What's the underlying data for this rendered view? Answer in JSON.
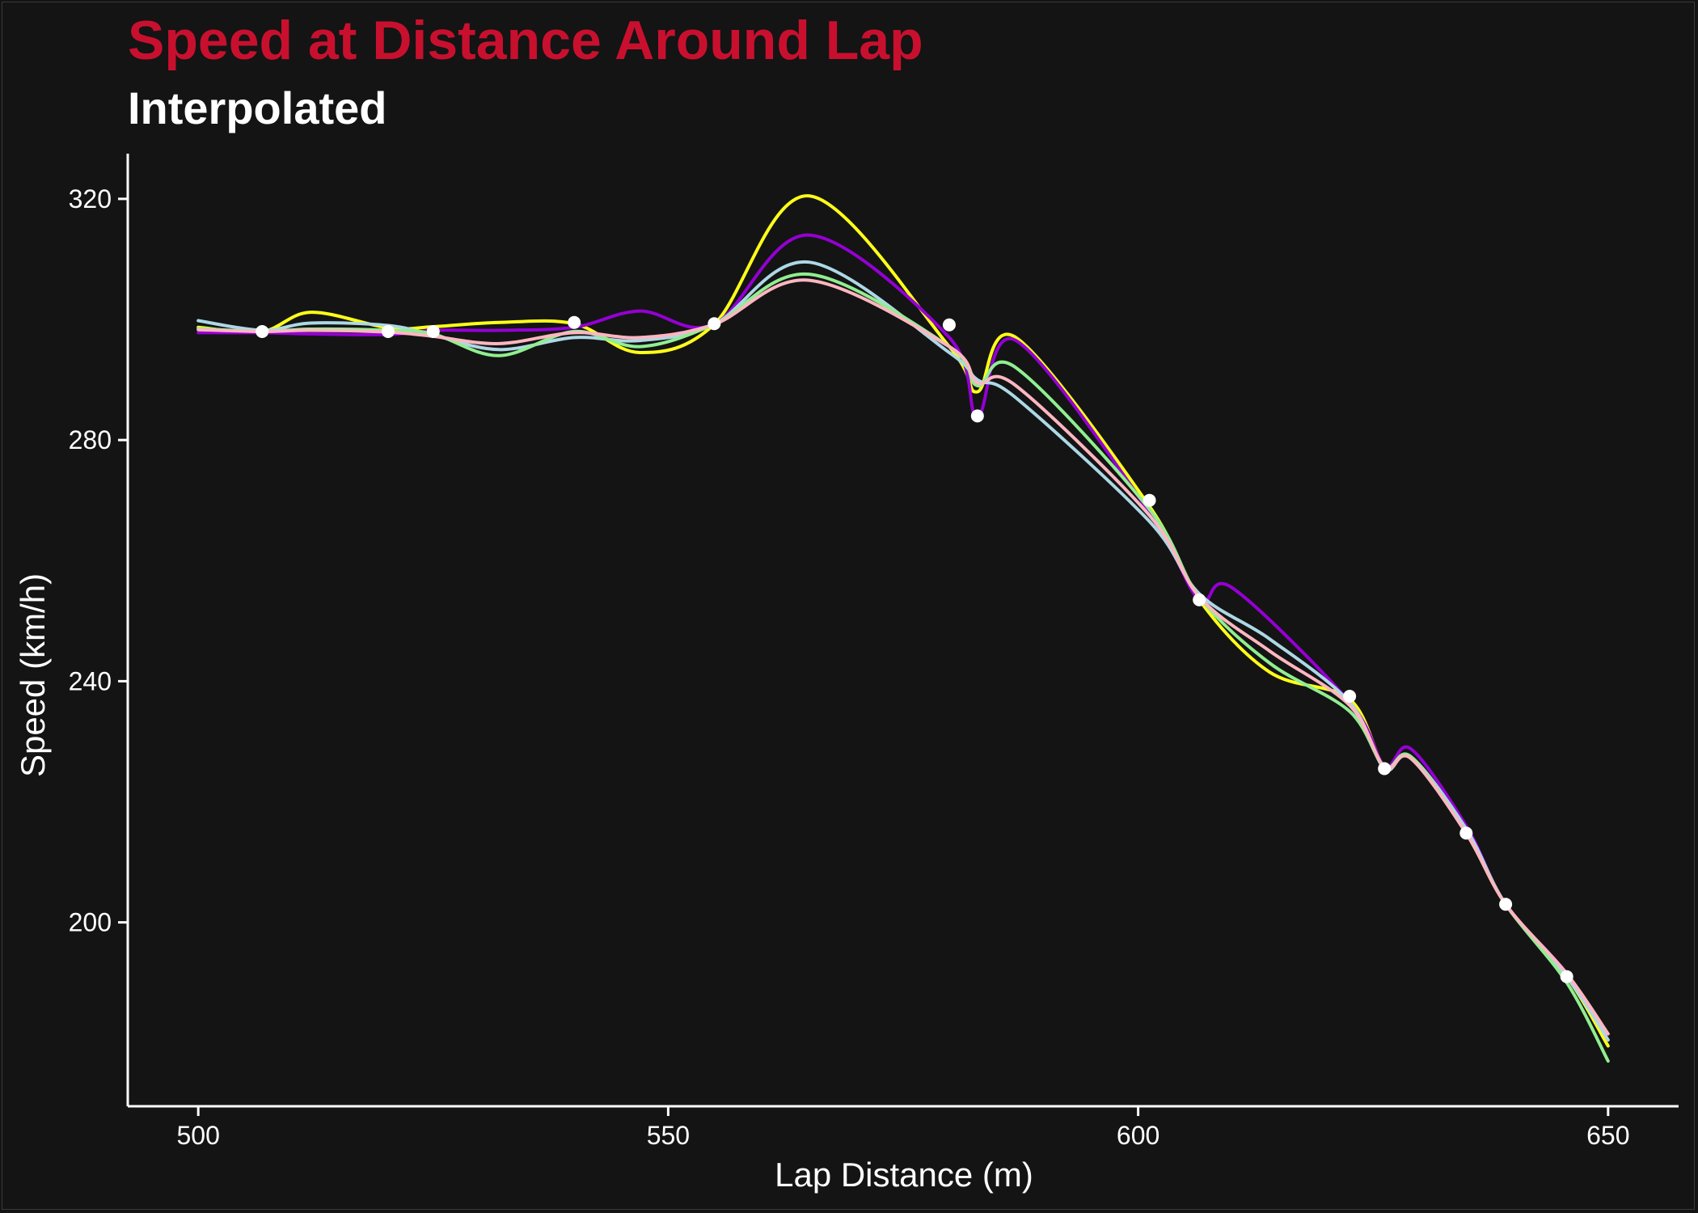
{
  "chart_data": {
    "type": "line",
    "title": "Speed at Distance Around Lap",
    "subtitle": "Interpolated",
    "xlabel": "Lap Distance (m)",
    "ylabel": "Speed (km/h)",
    "xlim": [
      492.5,
      657.5
    ],
    "ylim": [
      169.5,
      327.5
    ],
    "x_ticks": [
      500,
      550,
      600,
      650
    ],
    "y_ticks": [
      200,
      240,
      280,
      320
    ],
    "grid": false,
    "legend": "none",
    "colors": {
      "background": "#141414",
      "title": "#c8102e",
      "text": "#ffffff",
      "axis": "#ffffff",
      "points": "#ffffff"
    },
    "observed_points": [
      {
        "x": 506.8,
        "y": 298.0
      },
      {
        "x": 520.2,
        "y": 298.0
      },
      {
        "x": 525.0,
        "y": 298.0
      },
      {
        "x": 540.0,
        "y": 299.5
      },
      {
        "x": 554.9,
        "y": 299.3
      },
      {
        "x": 579.9,
        "y": 299.1
      },
      {
        "x": 582.9,
        "y": 284.0
      },
      {
        "x": 601.2,
        "y": 270.0
      },
      {
        "x": 606.5,
        "y": 253.5
      },
      {
        "x": 622.5,
        "y": 237.5
      },
      {
        "x": 626.2,
        "y": 225.5
      },
      {
        "x": 634.9,
        "y": 214.8
      },
      {
        "x": 639.1,
        "y": 203.0
      },
      {
        "x": 645.6,
        "y": 191.0
      }
    ],
    "series": [
      {
        "color": "#ffff1a",
        "x": [
          500,
          506.8,
          512,
          520.2,
          525,
          532,
          540,
          547,
          554.9,
          565,
          579.9,
          582.9,
          587,
          601.2,
          606.5,
          614,
          622.5,
          626.2,
          629,
          634.9,
          639.1,
          645.6,
          650
        ],
        "y": [
          298.7,
          298.0,
          301.2,
          298.6,
          298.8,
          299.5,
          299.3,
          294.5,
          299.2,
          320.5,
          295.5,
          288.0,
          297.0,
          269.0,
          253.5,
          241.5,
          237.0,
          225.8,
          227.5,
          214.8,
          203.0,
          191.0,
          179.5
        ]
      },
      {
        "color": "#9400d3",
        "x": [
          500,
          506.8,
          512,
          520.2,
          525,
          532,
          540,
          547,
          554.9,
          565,
          579.9,
          582.9,
          587,
          601.2,
          606.5,
          610,
          622.5,
          626.2,
          629,
          634.9,
          639.1,
          645.6,
          650
        ],
        "y": [
          297.8,
          297.8,
          297.6,
          297.5,
          298.2,
          298.2,
          298.7,
          301.4,
          299.2,
          314.0,
          297.0,
          284.0,
          296.5,
          268.0,
          253.5,
          255.5,
          236.5,
          226.0,
          228.8,
          216.0,
          203.0,
          191.5,
          180.5
        ]
      },
      {
        "color": "#add8e6",
        "x": [
          500,
          506.8,
          512,
          520.2,
          525,
          532,
          540,
          547,
          554.9,
          565,
          579.9,
          582.9,
          587,
          601.2,
          606.5,
          614,
          622.5,
          626.2,
          629,
          634.9,
          639.1,
          645.6,
          650
        ],
        "y": [
          299.8,
          298.2,
          299.4,
          299.0,
          297.4,
          295.0,
          297.0,
          296.5,
          299.2,
          309.5,
          294.5,
          290.0,
          287.0,
          266.5,
          254.5,
          247.0,
          236.5,
          225.5,
          227.5,
          215.5,
          203.0,
          191.0,
          180.5
        ]
      },
      {
        "color": "#90ee90",
        "x": [
          500,
          506.8,
          512,
          520.2,
          525,
          532,
          540,
          547,
          554.9,
          565,
          579.9,
          582.9,
          587,
          601.2,
          606.5,
          614,
          622.5,
          626.2,
          629,
          634.9,
          639.1,
          645.6,
          650
        ],
        "y": [
          298.5,
          298.0,
          298.4,
          298.2,
          297.6,
          294.0,
          298.0,
          295.5,
          299.2,
          307.5,
          295.5,
          289.0,
          292.0,
          268.5,
          254.0,
          243.0,
          235.0,
          225.8,
          227.5,
          214.8,
          203.0,
          190.0,
          177.0
        ]
      },
      {
        "color": "#ffb6c1",
        "x": [
          500,
          506.8,
          512,
          520.2,
          525,
          532,
          540,
          547,
          554.9,
          565,
          579.9,
          582.9,
          587,
          601.2,
          606.5,
          614,
          622.5,
          626.2,
          629,
          634.9,
          639.1,
          645.6,
          650
        ],
        "y": [
          298.3,
          298.0,
          298.2,
          297.9,
          297.2,
          296.0,
          297.8,
          297.0,
          299.2,
          306.5,
          295.5,
          289.5,
          289.0,
          267.5,
          254.0,
          245.0,
          236.0,
          225.8,
          227.2,
          214.8,
          203.0,
          191.5,
          181.5
        ]
      }
    ]
  }
}
